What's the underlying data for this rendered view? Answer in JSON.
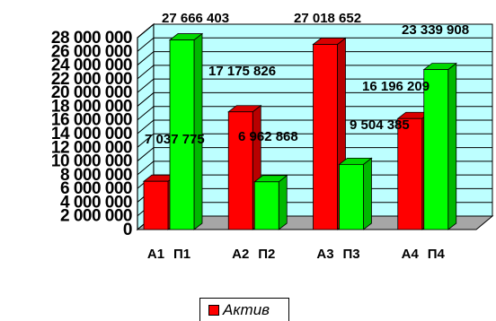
{
  "chart_data": {
    "type": "bar",
    "categories": [
      "А1",
      "П1",
      "А2",
      "П2",
      "А3",
      "П3",
      "А4",
      "П4"
    ],
    "values": [
      7037775,
      27666403,
      17175826,
      6962868,
      27018652,
      9504385,
      16196209,
      23339908
    ],
    "data_labels": [
      "7 037 775",
      "27 666 403",
      "17 175 826",
      "6 962 868",
      "27 018 652",
      "9 504 385",
      "16 196 209",
      "23 339 908"
    ],
    "series": [
      {
        "name": "Актив",
        "color": "#ff0000",
        "category_indices": [
          0,
          2,
          4,
          6
        ]
      },
      {
        "name": "",
        "color": "#00ff00",
        "category_indices": [
          1,
          3,
          5,
          7
        ]
      }
    ],
    "y_ticks": [
      "0",
      "2 000 000",
      "4 000 000",
      "6 000 000",
      "8 000 000",
      "10 000 000",
      "12 000 000",
      "14 000 000",
      "16 000 000",
      "18 000 000",
      "20 000 000",
      "22 000 000",
      "24 000 000",
      "26 000 000",
      "28 000 000"
    ],
    "ylim": [
      0,
      28000000
    ],
    "grid": true,
    "three_d": true,
    "legend_position": "bottom",
    "title": "",
    "xlabel": "",
    "ylabel": ""
  },
  "legend": {
    "label": "Актив",
    "color": "#ff0000"
  },
  "colors": {
    "wall": "#bdffff",
    "floor": "#a6a6a6",
    "grid": "#000000",
    "red": "#ff0000",
    "green": "#00ff00"
  }
}
